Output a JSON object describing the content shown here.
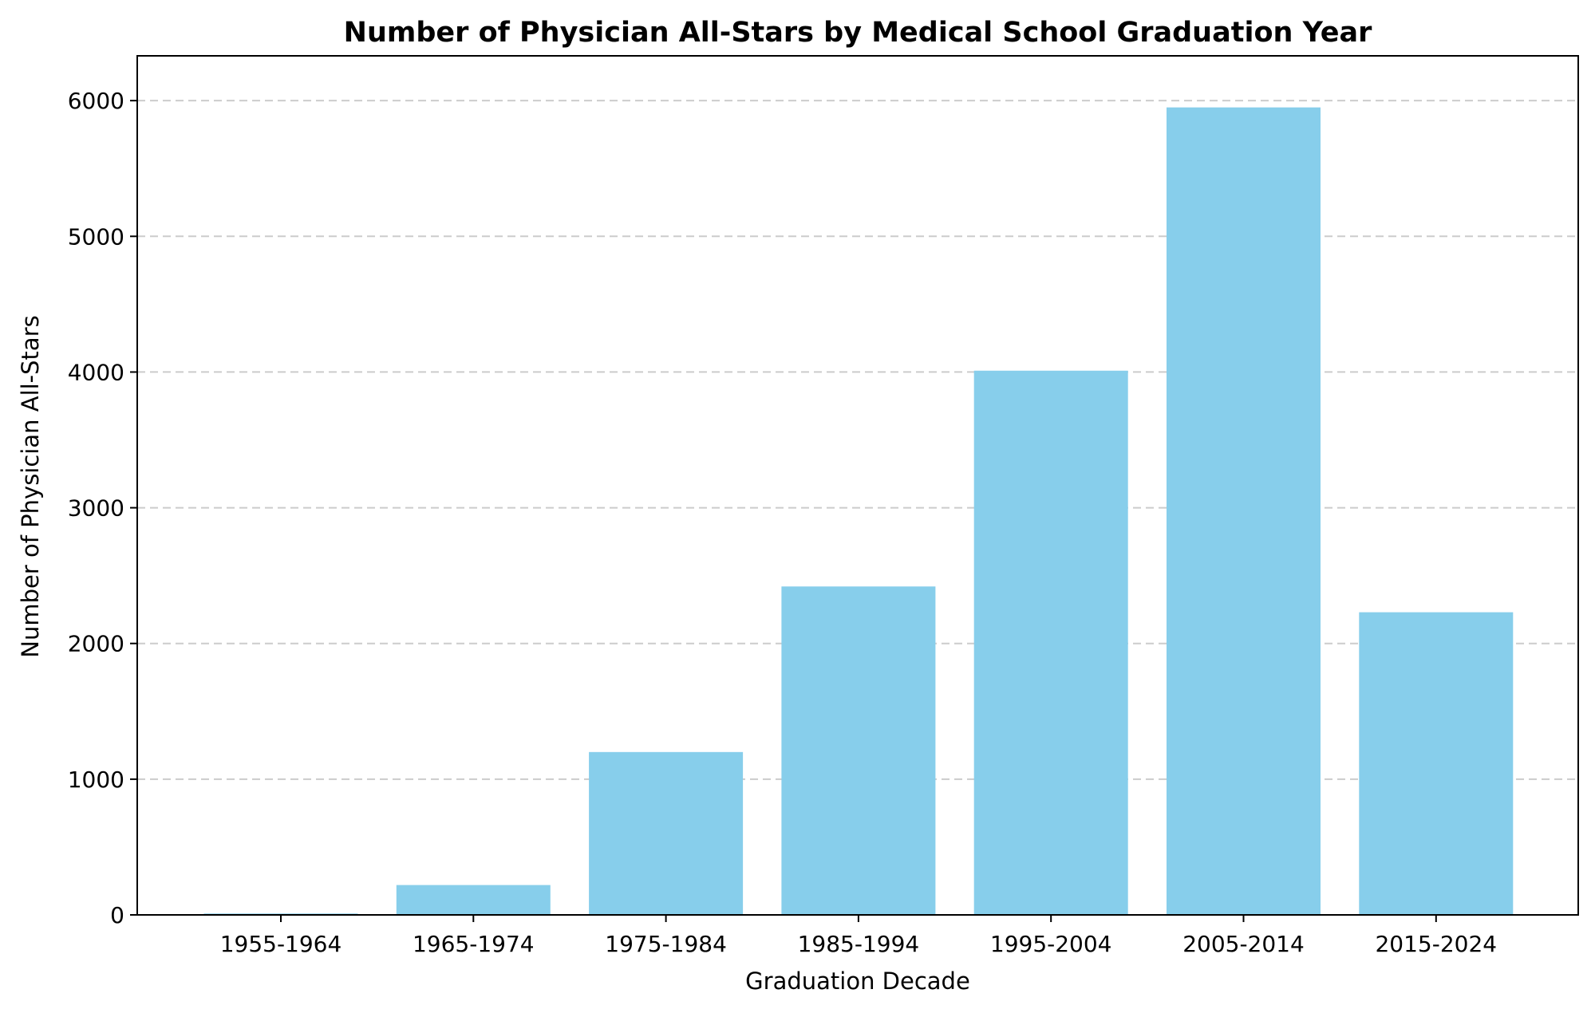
{
  "chart_data": {
    "type": "bar",
    "title": "Number of Physician All-Stars by Medical School Graduation Year",
    "xlabel": "Graduation Decade",
    "ylabel": "Number of Physician All-Stars",
    "categories": [
      "1955-1964",
      "1965-1974",
      "1975-1984",
      "1985-1994",
      "1995-2004",
      "2005-2014",
      "2015-2024"
    ],
    "values": [
      10,
      220,
      1200,
      2420,
      4010,
      5950,
      2230
    ],
    "ylim": [
      0,
      6330
    ],
    "yticks": [
      0,
      1000,
      2000,
      3000,
      4000,
      5000,
      6000
    ],
    "grid": "y-dashed",
    "bar_color": "#87CEEB"
  }
}
